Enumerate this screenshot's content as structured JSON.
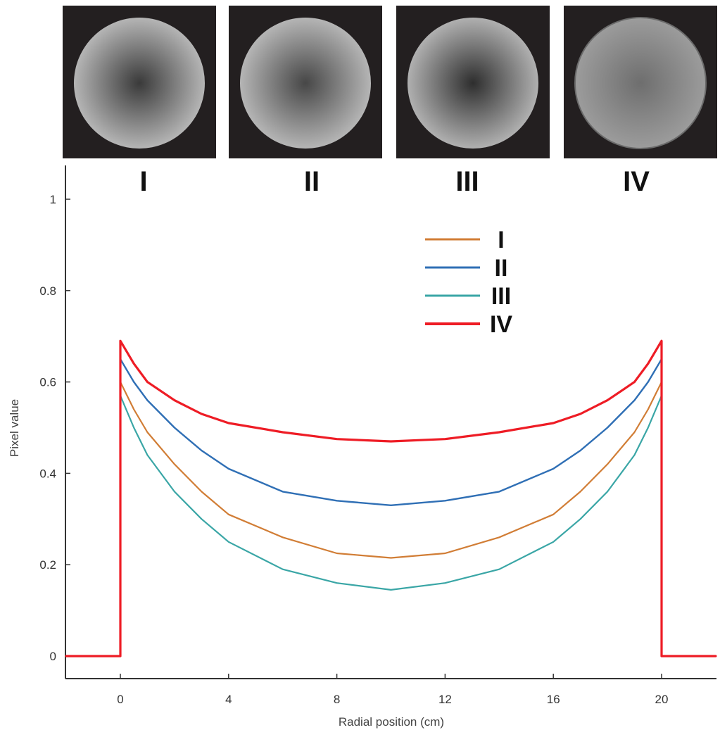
{
  "panels": [
    {
      "label": "I",
      "center_shade": "#3a3a3a",
      "edge_shade": "#b5b5b5"
    },
    {
      "label": "II",
      "center_shade": "#474747",
      "edge_shade": "#b5b5b5"
    },
    {
      "label": "III",
      "center_shade": "#2e2e2e",
      "edge_shade": "#b0b0b0"
    },
    {
      "label": "IV",
      "center_shade": "#6e6e6e",
      "edge_shade": "#9c9c9c"
    }
  ],
  "chart_data": {
    "type": "line",
    "title": "",
    "xlabel": "Radial position (cm)",
    "ylabel": "Pixel value",
    "xlim": [
      -4,
      44
    ],
    "ylim": [
      -0.05,
      1.07
    ],
    "xticks": [
      0,
      4,
      8,
      12,
      16,
      20
    ],
    "yticks": [
      0,
      0.2,
      0.4,
      0.6,
      0.8,
      1
    ],
    "legend_position": "top-right",
    "grid": false,
    "series": [
      {
        "name": "I",
        "color": "#d17d35",
        "x": [
          -2,
          0,
          0,
          0.5,
          1,
          2,
          3,
          4,
          6,
          8,
          10,
          12,
          14,
          16,
          17,
          18,
          19,
          19.5,
          20,
          20,
          22
        ],
        "y": [
          0,
          0,
          0.6,
          0.54,
          0.49,
          0.42,
          0.36,
          0.31,
          0.26,
          0.225,
          0.215,
          0.225,
          0.26,
          0.31,
          0.36,
          0.42,
          0.49,
          0.54,
          0.6,
          0,
          0
        ]
      },
      {
        "name": "II",
        "color": "#2f6fb5",
        "x": [
          -2,
          0,
          0,
          0.5,
          1,
          2,
          3,
          4,
          6,
          8,
          10,
          12,
          14,
          16,
          17,
          18,
          19,
          19.5,
          20,
          20,
          22
        ],
        "y": [
          0,
          0,
          0.65,
          0.6,
          0.56,
          0.5,
          0.45,
          0.41,
          0.36,
          0.34,
          0.33,
          0.34,
          0.36,
          0.41,
          0.45,
          0.5,
          0.56,
          0.6,
          0.65,
          0,
          0
        ]
      },
      {
        "name": "III",
        "color": "#3aa6a6",
        "x": [
          -2,
          0,
          0,
          0.5,
          1,
          2,
          3,
          4,
          6,
          8,
          10,
          12,
          14,
          16,
          17,
          18,
          19,
          19.5,
          20,
          20,
          22
        ],
        "y": [
          0,
          0,
          0.57,
          0.5,
          0.44,
          0.36,
          0.3,
          0.25,
          0.19,
          0.16,
          0.145,
          0.16,
          0.19,
          0.25,
          0.3,
          0.36,
          0.44,
          0.5,
          0.57,
          0,
          0
        ]
      },
      {
        "name": "IV",
        "color": "#ee1c25",
        "x": [
          -2,
          0,
          0,
          0.5,
          1,
          2,
          3,
          4,
          6,
          8,
          10,
          12,
          14,
          16,
          17,
          18,
          19,
          19.5,
          20,
          20,
          22
        ],
        "y": [
          0,
          0,
          0.69,
          0.64,
          0.6,
          0.56,
          0.53,
          0.51,
          0.49,
          0.475,
          0.47,
          0.475,
          0.49,
          0.51,
          0.53,
          0.56,
          0.6,
          0.64,
          0.69,
          0,
          0
        ]
      }
    ]
  }
}
